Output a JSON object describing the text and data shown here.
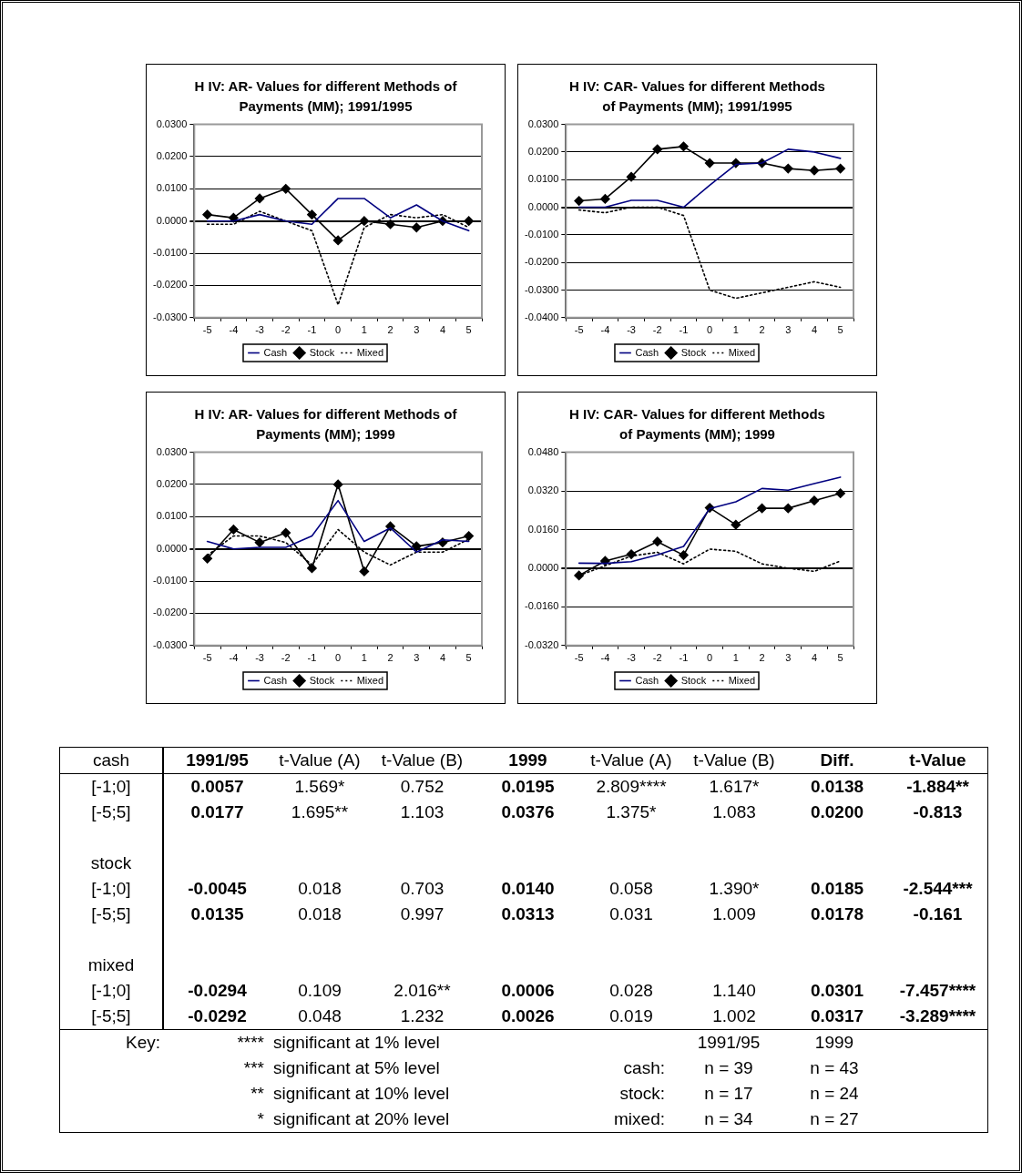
{
  "chart_data": [
    {
      "type": "line",
      "title": "H IV: AR- Values for different Methods of Payments (MM); 1991/1995",
      "categories": [
        "-5",
        "-4",
        "-3",
        "-2",
        "-1",
        "0",
        "1",
        "2",
        "3",
        "4",
        "5"
      ],
      "ylim": [
        -0.03,
        0.03
      ],
      "yticks": [
        {
          "value": -0.03,
          "label": "-0.0300"
        },
        {
          "value": -0.02,
          "label": "-0.0200"
        },
        {
          "value": -0.01,
          "label": "-0.0100"
        },
        {
          "value": 0,
          "label": "0.0000"
        },
        {
          "value": 0.01,
          "label": "0.0100"
        },
        {
          "value": 0.02,
          "label": "0.0200"
        },
        {
          "value": 0.03,
          "label": "0.0300"
        }
      ],
      "grid": "y",
      "legend": "bottom",
      "series": [
        {
          "name": "Cash",
          "color": "#000080",
          "marker": "none",
          "line_style": "solid",
          "values": [
            0,
            0,
            0.002,
            0,
            -0.001,
            0.007,
            0.007,
            0.001,
            0.005,
            0,
            -0.003
          ]
        },
        {
          "name": "Stock",
          "color": "#000000",
          "marker": "diamond",
          "line_style": "solid",
          "values": [
            0.002,
            0.001,
            0.007,
            0.01,
            0.002,
            -0.006,
            0,
            -0.001,
            -0.002,
            0,
            0
          ]
        },
        {
          "name": "Mixed",
          "color": "#000000",
          "marker": "none",
          "line_style": "dotted",
          "values": [
            -0.001,
            -0.001,
            0.003,
            0,
            -0.003,
            -0.026,
            -0.002,
            0.002,
            0.001,
            0.002,
            -0.002
          ]
        }
      ]
    },
    {
      "type": "line",
      "title": "H IV: CAR- Values for different Methods of Payments (MM); 1991/1995",
      "categories": [
        "-5",
        "-4",
        "-3",
        "-2",
        "-1",
        "0",
        "1",
        "2",
        "3",
        "4",
        "5"
      ],
      "ylim": [
        -0.04,
        0.03
      ],
      "yticks": [
        {
          "value": -0.04,
          "label": "-0.0400"
        },
        {
          "value": -0.03,
          "label": "-0.0300"
        },
        {
          "value": -0.02,
          "label": "-0.0200"
        },
        {
          "value": -0.01,
          "label": "-0.0100"
        },
        {
          "value": 0,
          "label": "0.0000"
        },
        {
          "value": 0.01,
          "label": "0.0100"
        },
        {
          "value": 0.02,
          "label": "0.0200"
        },
        {
          "value": 0.03,
          "label": "0.0300"
        }
      ],
      "grid": "y",
      "legend": "bottom",
      "series": [
        {
          "name": "Cash",
          "color": "#000080",
          "marker": "none",
          "line_style": "solid",
          "values": [
            0,
            0,
            0.0025,
            0.0025,
            0,
            0.008,
            0.0155,
            0.016,
            0.021,
            0.02,
            0.0177
          ]
        },
        {
          "name": "Stock",
          "color": "#000000",
          "marker": "diamond",
          "line_style": "solid",
          "values": [
            0.0023,
            0.003,
            0.011,
            0.021,
            0.022,
            0.016,
            0.016,
            0.016,
            0.014,
            0.0133,
            0.014
          ]
        },
        {
          "name": "Mixed",
          "color": "#000000",
          "marker": "none",
          "line_style": "dotted",
          "values": [
            -0.001,
            -0.002,
            0,
            0,
            -0.003,
            -0.03,
            -0.033,
            -0.031,
            -0.029,
            -0.027,
            -0.029
          ]
        }
      ]
    },
    {
      "type": "line",
      "title": "H IV: AR- Values for different Methods of Payments (MM); 1999",
      "categories": [
        "-5",
        "-4",
        "-3",
        "-2",
        "-1",
        "0",
        "1",
        "2",
        "3",
        "4",
        "5"
      ],
      "ylim": [
        -0.03,
        0.03
      ],
      "yticks": [
        {
          "value": -0.03,
          "label": "-0.0300"
        },
        {
          "value": -0.02,
          "label": "-0.0200"
        },
        {
          "value": -0.01,
          "label": "-0.0100"
        },
        {
          "value": 0,
          "label": "0.0000"
        },
        {
          "value": 0.01,
          "label": "0.0100"
        },
        {
          "value": 0.02,
          "label": "0.0200"
        },
        {
          "value": 0.03,
          "label": "0.0300"
        }
      ],
      "grid": "y",
      "legend": "bottom",
      "series": [
        {
          "name": "Cash",
          "color": "#000080",
          "marker": "none",
          "line_style": "solid",
          "values": [
            0.0023,
            0,
            0.0005,
            0.0005,
            0.004,
            0.015,
            0.0023,
            0.0065,
            -0.001,
            0.0028,
            0.0023
          ]
        },
        {
          "name": "Stock",
          "color": "#000000",
          "marker": "diamond",
          "line_style": "solid",
          "values": [
            -0.003,
            0.006,
            0.002,
            0.005,
            -0.006,
            0.02,
            -0.007,
            0.007,
            0.0008,
            0.002,
            0.004
          ]
        },
        {
          "name": "Mixed",
          "color": "#000000",
          "marker": "none",
          "line_style": "dotted",
          "values": [
            -0.002,
            0.004,
            0.004,
            0.002,
            -0.005,
            0.006,
            -0.001,
            -0.005,
            -0.001,
            -0.001,
            0.003
          ]
        }
      ]
    },
    {
      "type": "line",
      "title": "H IV: CAR- Values for different Methods of Payments (MM); 1999",
      "categories": [
        "-5",
        "-4",
        "-3",
        "-2",
        "-1",
        "0",
        "1",
        "2",
        "3",
        "4",
        "5"
      ],
      "ylim": [
        -0.032,
        0.048
      ],
      "yticks": [
        {
          "value": -0.032,
          "label": "-0.0320"
        },
        {
          "value": -0.016,
          "label": "-0.0160"
        },
        {
          "value": 0,
          "label": "0.0000"
        },
        {
          "value": 0.016,
          "label": "0.0160"
        },
        {
          "value": 0.032,
          "label": "0.0320"
        },
        {
          "value": 0.048,
          "label": "0.0480"
        }
      ],
      "grid": "y",
      "legend": "bottom",
      "series": [
        {
          "name": "Cash",
          "color": "#000080",
          "marker": "none",
          "line_style": "solid",
          "values": [
            0.0021,
            0.002,
            0.0027,
            0.0055,
            0.009,
            0.0247,
            0.0275,
            0.033,
            0.0323,
            0.035,
            0.0377
          ]
        },
        {
          "name": "Stock",
          "color": "#000000",
          "marker": "diamond",
          "line_style": "solid",
          "values": [
            -0.003,
            0.003,
            0.0058,
            0.011,
            0.0054,
            0.025,
            0.018,
            0.0248,
            0.0248,
            0.028,
            0.031
          ]
        },
        {
          "name": "Mixed",
          "color": "#000000",
          "marker": "none",
          "line_style": "dotted",
          "values": [
            -0.003,
            0.001,
            0.005,
            0.0066,
            0.0018,
            0.0079,
            0.007,
            0.0018,
            0,
            -0.0013,
            0.003
          ]
        }
      ]
    },
    {
      "type": "other",
      "y_categories": [
        "cash",
        "[-1;0]",
        "[-5;5]",
        null,
        "stock",
        "[-1;0]",
        "[-5;5]",
        null,
        "mixed",
        "[-1;0]",
        "[-5;5]"
      ],
      "cell_labels": [
        [
          "1991/95",
          "t-Value (A)",
          "t-Value (B)",
          "1999",
          "t-Value (A)",
          "t-Value (B)",
          "Diff.",
          "t-Value"
        ],
        [
          "0.0057",
          "1.569*",
          "0.752",
          "0.0195",
          "2.809****",
          "1.617*",
          "0.0138",
          "-1.884**"
        ],
        [
          "0.0177",
          "1.695**",
          "1.103",
          "0.0376",
          "1.375*",
          "1.083",
          "0.0200",
          "-0.813"
        ],
        [
          null,
          null,
          null,
          null,
          null,
          null,
          null,
          null
        ],
        [
          null,
          null,
          null,
          null,
          null,
          null,
          null,
          null
        ],
        [
          "-0.0045",
          "0.018",
          "0.703",
          "0.0140",
          "0.058",
          "1.390*",
          "0.0185",
          "-2.544***"
        ],
        [
          "0.0135",
          "0.018",
          "0.997",
          "0.0313",
          "0.031",
          "1.009",
          "0.0178",
          "-0.161"
        ],
        [
          null,
          null,
          null,
          null,
          null,
          null,
          null,
          null
        ],
        [
          null,
          null,
          null,
          null,
          null,
          null,
          null,
          null
        ],
        [
          "-0.0294",
          "0.109",
          "2.016**",
          "0.0006",
          "0.028",
          "1.140",
          "0.0301",
          "-7.457****"
        ],
        [
          "-0.0292",
          "0.048",
          "1.232",
          "0.0026",
          "0.019",
          "1.002",
          "0.0317",
          "-3.289****"
        ]
      ]
    },
    {
      "type": "other",
      "y_categories": [
        "Key:",
        null,
        null,
        null
      ],
      "cell_labels": [
        [
          "****",
          "significant at 1% level",
          null,
          "1991/95",
          "1999"
        ],
        [
          "***",
          "significant at 5% level",
          "cash:",
          "n = 39",
          "n = 43"
        ],
        [
          "**",
          "significant at 10% level",
          "stock:",
          "n = 17",
          "n = 24"
        ],
        [
          "*",
          "significant at 20% level",
          "mixed:",
          "n = 34",
          "n = 27"
        ]
      ]
    }
  ]
}
